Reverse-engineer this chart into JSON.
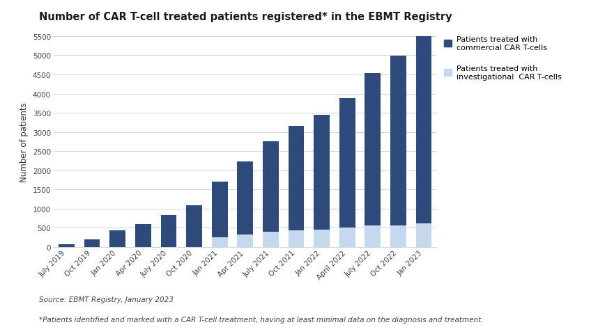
{
  "title": "Number of CAR T-cell treated patients registered",
  "title_asterisk": "*",
  "title_suffix": " in the EBMT Registry",
  "ylabel": "Number of patients",
  "categories": [
    "July 2019",
    "Oct 2019",
    "Jan 2020",
    "Apr 2020",
    "July 2020",
    "Oct 2020",
    "Jan 2021",
    "Apr 2021",
    "July 2021",
    "Oct 2021",
    "Jan 2022",
    "April 2022",
    "July 2022",
    "Oct 2022",
    "Jan 2023"
  ],
  "commercial": [
    75,
    200,
    430,
    590,
    830,
    1080,
    1450,
    1900,
    2350,
    2720,
    3000,
    3380,
    3970,
    4420,
    4920
  ],
  "investigational": [
    0,
    0,
    0,
    0,
    0,
    0,
    250,
    330,
    400,
    430,
    450,
    510,
    560,
    570,
    620
  ],
  "commercial_color": "#2E4A7A",
  "investigational_color": "#C5D8EE",
  "background_color": "#FFFFFF",
  "grid_color": "#CCCCCC",
  "ylim": [
    0,
    5500
  ],
  "yticks": [
    0,
    500,
    1000,
    1500,
    2000,
    2500,
    3000,
    3500,
    4000,
    4500,
    5000,
    5500
  ],
  "title_fontsize": 10.5,
  "axis_label_fontsize": 8.5,
  "tick_fontsize": 7.5,
  "legend_commercial": "Patients treated with\ncommercial CAR T-cells",
  "legend_investigational": "Patients treated with\ninvestigational  CAR T-cells",
  "source_text": "Source: EBMT Registry, January 2023",
  "footnote_text": "*Patients identified and marked with a CAR T-cell treatment, having at least minimal data on the diagnosis and treatment."
}
